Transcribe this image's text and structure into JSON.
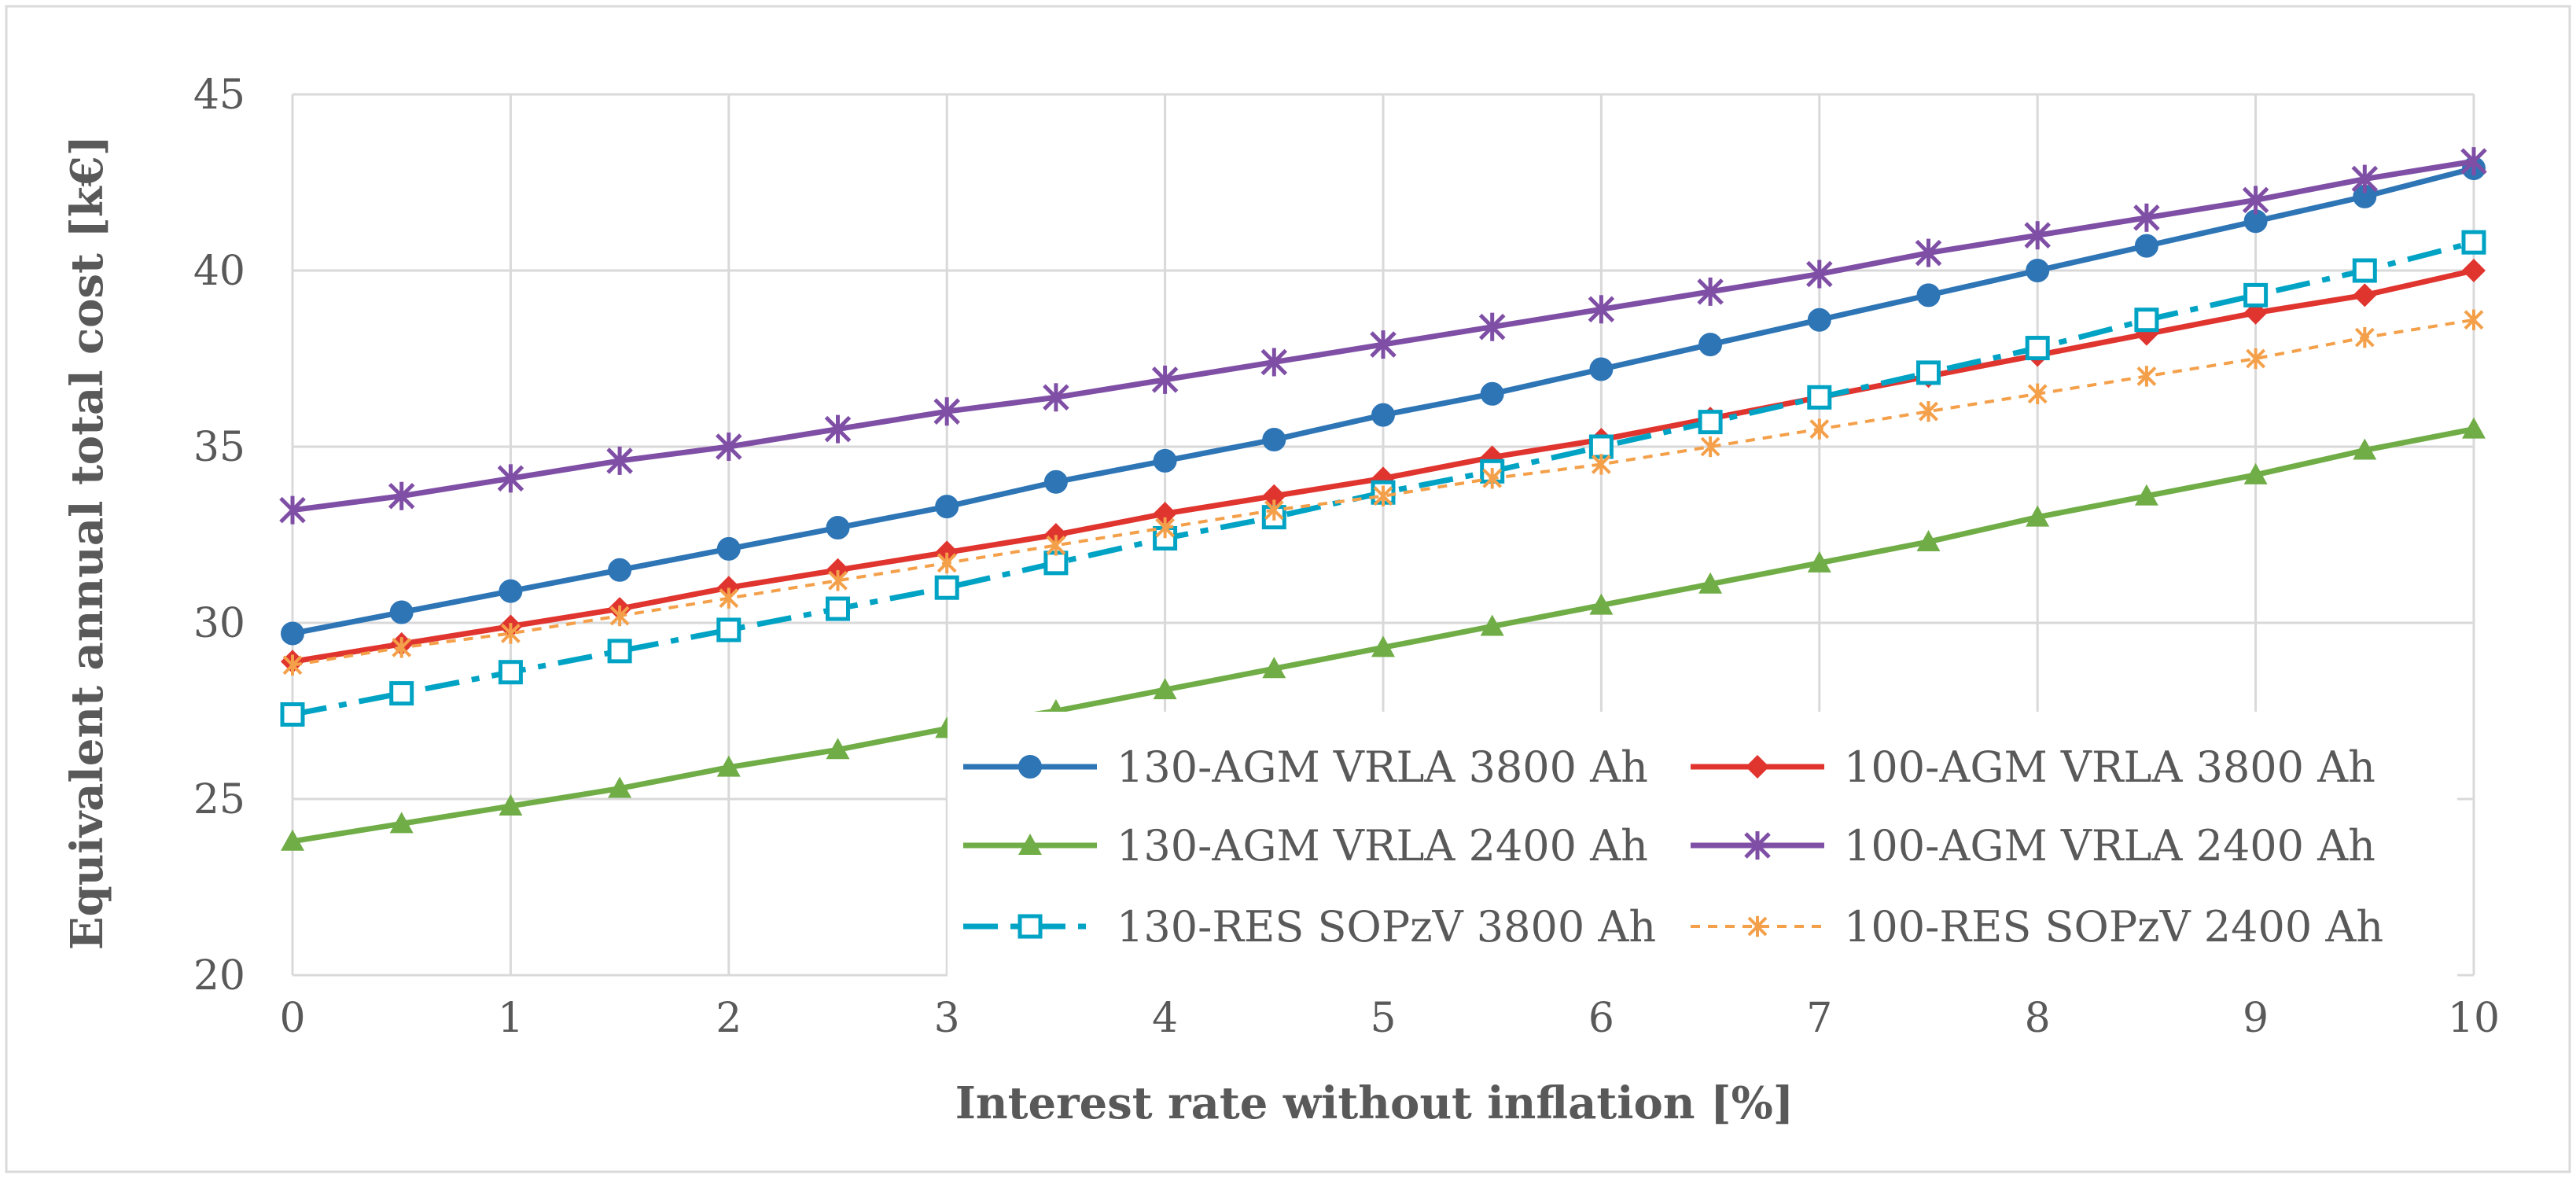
{
  "chart_data": {
    "type": "line",
    "title": "",
    "xlabel": "Interest rate without inflation [%]",
    "ylabel": "Equivalent annual total cost [k€]",
    "xlim": [
      0,
      10
    ],
    "ylim": [
      20,
      45
    ],
    "xticks": [
      "0",
      "1",
      "2",
      "3",
      "4",
      "5",
      "6",
      "7",
      "8",
      "9",
      "10"
    ],
    "yticks": [
      "20",
      "25",
      "30",
      "35",
      "40",
      "45"
    ],
    "grid": true,
    "legend_position": "lower-right",
    "x": [
      0,
      0.5,
      1,
      1.5,
      2,
      2.5,
      3,
      3.5,
      4,
      4.5,
      5,
      5.5,
      6,
      6.5,
      7,
      7.5,
      8,
      8.5,
      9,
      9.5,
      10
    ],
    "series": [
      {
        "name": "130-AGM VRLA 3800 Ah",
        "color": "#2e75b6",
        "marker": "circle",
        "dash": "solid",
        "values": [
          29.7,
          30.3,
          30.9,
          31.5,
          32.1,
          32.7,
          33.3,
          34.0,
          34.6,
          35.2,
          35.9,
          36.5,
          37.2,
          37.9,
          38.6,
          39.3,
          40.0,
          40.7,
          41.4,
          42.1,
          42.9
        ]
      },
      {
        "name": "100-AGM VRLA 3800 Ah",
        "color": "#e0342f",
        "marker": "diamond",
        "dash": "solid",
        "values": [
          28.9,
          29.4,
          29.9,
          30.4,
          31.0,
          31.5,
          32.0,
          32.5,
          33.1,
          33.6,
          34.1,
          34.7,
          35.2,
          35.8,
          36.4,
          37.0,
          37.6,
          38.2,
          38.8,
          39.3,
          40.0
        ]
      },
      {
        "name": "130-AGM VRLA 2400 Ah",
        "color": "#70ad47",
        "marker": "triangle",
        "dash": "solid",
        "values": [
          23.8,
          24.3,
          24.8,
          25.3,
          25.9,
          26.4,
          27.0,
          27.5,
          28.1,
          28.7,
          29.3,
          29.9,
          30.5,
          31.1,
          31.7,
          32.3,
          33.0,
          33.6,
          34.2,
          34.9,
          35.5
        ]
      },
      {
        "name": "100-AGM VRLA 2400 Ah",
        "color": "#7f4fa6",
        "marker": "star",
        "dash": "solid",
        "values": [
          33.2,
          33.6,
          34.1,
          34.6,
          35.0,
          35.5,
          36.0,
          36.4,
          36.9,
          37.4,
          37.9,
          38.4,
          38.9,
          39.4,
          39.9,
          40.5,
          41.0,
          41.5,
          42.0,
          42.6,
          43.1
        ]
      },
      {
        "name": "130-RES SOPzV 3800 Ah",
        "color": "#00a3c4",
        "marker": "square",
        "dash": "dashdot",
        "values": [
          27.4,
          28.0,
          28.6,
          29.2,
          29.8,
          30.4,
          31.0,
          31.7,
          32.4,
          33.0,
          33.7,
          34.3,
          35.0,
          35.7,
          36.4,
          37.1,
          37.8,
          38.6,
          39.3,
          40.0,
          40.8
        ]
      },
      {
        "name": "100-RES SOPzV 2400 Ah",
        "color": "#f4a04a",
        "marker": "asterisk",
        "dash": "dotted",
        "values": [
          28.8,
          29.3,
          29.7,
          30.2,
          30.7,
          31.2,
          31.7,
          32.2,
          32.7,
          33.2,
          33.6,
          34.1,
          34.5,
          35.0,
          35.5,
          36.0,
          36.5,
          37.0,
          37.5,
          38.1,
          38.6
        ]
      }
    ]
  }
}
